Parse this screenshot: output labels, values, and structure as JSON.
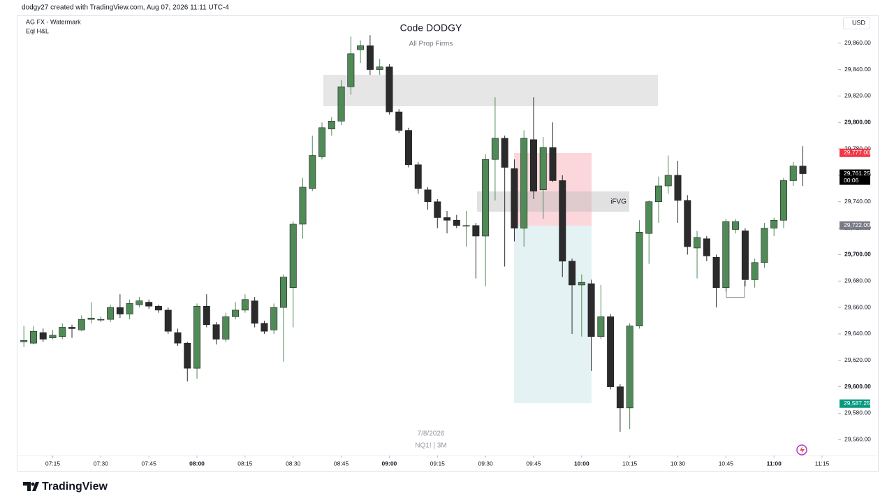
{
  "header": "dodgy27 created with TradingView.com, Aug 07, 2026 11:11 UTC-4",
  "indicators": [
    "AG FX - Watermark",
    "Eql H&L"
  ],
  "currency": "USD",
  "brand": "TradingView",
  "chart_data": {
    "type": "candlestick",
    "title": "Code DODGY",
    "subtitle": "All Prop Firms",
    "date_label": "7/8/2026",
    "symbol_label": "NQ1! | 3M",
    "annotation": "iFVG",
    "up_color": "#4f8a57",
    "down_color": "#2b2b2b",
    "x": [
      "07:06",
      "07:09",
      "07:12",
      "07:15",
      "07:18",
      "07:21",
      "07:24",
      "07:27",
      "07:30",
      "07:33",
      "07:36",
      "07:39",
      "07:42",
      "07:45",
      "07:48",
      "07:51",
      "07:54",
      "07:57",
      "08:00",
      "08:03",
      "08:06",
      "08:09",
      "08:12",
      "08:15",
      "08:18",
      "08:21",
      "08:24",
      "08:27",
      "08:30",
      "08:33",
      "08:36",
      "08:39",
      "08:42",
      "08:45",
      "08:48",
      "08:51",
      "08:54",
      "08:57",
      "09:00",
      "09:03",
      "09:06",
      "09:09",
      "09:12",
      "09:15",
      "09:18",
      "09:21",
      "09:24",
      "09:27",
      "09:30",
      "09:33",
      "09:36",
      "09:39",
      "09:42",
      "09:45",
      "09:48",
      "09:51",
      "09:54",
      "09:57",
      "10:00",
      "10:03",
      "10:06",
      "10:09",
      "10:12",
      "10:15",
      "10:18",
      "10:21",
      "10:24",
      "10:27",
      "10:30",
      "10:33",
      "10:36",
      "10:39",
      "10:42",
      "10:45",
      "10:48",
      "10:51",
      "10:54",
      "10:57",
      "11:00",
      "11:03",
      "11:06",
      "11:09"
    ],
    "open": [
      29634,
      29633,
      29641,
      29637,
      29638,
      29645,
      29643,
      29651,
      29651,
      29651,
      29660,
      29655,
      29662,
      29664,
      29661,
      29658,
      29641,
      29633,
      29614,
      29661,
      29647,
      29636,
      29653,
      29658,
      29665,
      29648,
      29643,
      29660,
      29675,
      29723,
      29750,
      29774,
      29795,
      29801,
      29827,
      29855,
      29858,
      29840,
      29842,
      29808,
      29794,
      29768,
      29749,
      29740,
      29728,
      29726,
      29722,
      29722,
      29714,
      29772,
      29788,
      29765,
      29720,
      29787,
      29749,
      29781,
      29756,
      29695,
      29677,
      29678,
      29638,
      29653,
      29600,
      29584,
      29646,
      29716,
      29740,
      29752,
      29760,
      29741,
      29705,
      29712,
      29698,
      29675,
      29719,
      29718,
      29681,
      29694,
      29720,
      29726,
      29756,
      29767
    ],
    "high": [
      29646,
      29646,
      29644,
      29643,
      29648,
      29647,
      29654,
      29664,
      29653,
      29662,
      29670,
      29666,
      29668,
      29666,
      29662,
      29660,
      29644,
      29634,
      29663,
      29670,
      29649,
      29656,
      29664,
      29670,
      29668,
      29650,
      29663,
      29685,
      29725,
      29758,
      29790,
      29800,
      29804,
      29832,
      29865,
      29862,
      29866,
      29848,
      29844,
      29810,
      29796,
      29770,
      29751,
      29742,
      29733,
      29730,
      29733,
      29724,
      29776,
      29819,
      29790,
      29772,
      29794,
      29819,
      29789,
      29800,
      29760,
      29697,
      29685,
      29681,
      29677,
      29655,
      29602,
      29648,
      29726,
      29741,
      29759,
      29775,
      29771,
      29745,
      29718,
      29714,
      29700,
      29727,
      29727,
      29720,
      29697,
      29724,
      29728,
      29758,
      29770,
      29782
    ],
    "low": [
      29630,
      29632,
      29634,
      29636,
      29636,
      29637,
      29642,
      29648,
      29649,
      29649,
      29652,
      29651,
      29660,
      29659,
      29656,
      29640,
      29631,
      29604,
      29606,
      29645,
      29632,
      29634,
      29651,
      29656,
      29645,
      29640,
      29640,
      29619,
      29645,
      29712,
      29748,
      29772,
      29790,
      29798,
      29821,
      29845,
      29836,
      29836,
      29806,
      29792,
      29766,
      29746,
      29734,
      29720,
      29716,
      29720,
      29706,
      29682,
      29676,
      29741,
      29691,
      29710,
      29706,
      29742,
      29727,
      29755,
      29683,
      29640,
      29638,
      29612,
      29636,
      29598,
      29566,
      29568,
      29644,
      29693,
      29724,
      29746,
      29724,
      29700,
      29682,
      29695,
      29660,
      29672,
      29716,
      29676,
      29675,
      29690,
      29714,
      29720,
      29752,
      29752
    ],
    "close": [
      29635,
      29642,
      29636,
      29639,
      29645,
      29644,
      29651,
      29652,
      29651,
      29660,
      29655,
      29663,
      29665,
      29661,
      29658,
      29642,
      29633,
      29614,
      29661,
      29647,
      29636,
      29653,
      29658,
      29666,
      29648,
      29642,
      29660,
      29683,
      29723,
      29751,
      29775,
      29796,
      29801,
      29827,
      29852,
      29858,
      29840,
      29842,
      29808,
      29794,
      29768,
      29750,
      29740,
      29728,
      29726,
      29722,
      29722,
      29714,
      29772,
      29788,
      29766,
      29720,
      29788,
      29748,
      29781,
      29756,
      29695,
      29677,
      29679,
      29638,
      29653,
      29600,
      29584,
      29646,
      29717,
      29740,
      29752,
      29760,
      29741,
      29706,
      29713,
      29699,
      29675,
      29725,
      29725,
      29681,
      29694,
      29720,
      29726,
      29756,
      29767,
      29761.25
    ],
    "xlim": [
      "07:04",
      "11:20"
    ],
    "xticks": [
      "07:15",
      "07:30",
      "07:45",
      "08:00",
      "08:15",
      "08:30",
      "08:45",
      "09:00",
      "09:15",
      "09:30",
      "09:45",
      "10:00",
      "10:15",
      "10:30",
      "10:45",
      "11:00",
      "11:15"
    ],
    "ylim": [
      29548,
      29881
    ],
    "yticks": [
      {
        "value": 29560,
        "label": "29,560.00"
      },
      {
        "value": 29580,
        "label": "29,580.00"
      },
      {
        "value": 29600,
        "label": "29,600.00"
      },
      {
        "value": 29620,
        "label": "29,620.00"
      },
      {
        "value": 29640,
        "label": "29,640.00"
      },
      {
        "value": 29660,
        "label": "29,660.00"
      },
      {
        "value": 29680,
        "label": "29,680.00"
      },
      {
        "value": 29700,
        "label": "29,700.00"
      },
      {
        "value": 29720,
        "label": "29,720.00"
      },
      {
        "value": 29740,
        "label": "29,740.00"
      },
      {
        "value": 29760,
        "label": "29,760.00"
      },
      {
        "value": 29780,
        "label": "29,780.00"
      },
      {
        "value": 29800,
        "label": "29,800.00"
      },
      {
        "value": 29820,
        "label": "29,820.00"
      },
      {
        "value": 29840,
        "label": "29,840.00"
      },
      {
        "value": 29860,
        "label": "29,860.00"
      }
    ],
    "price_labels": [
      {
        "value": 29777,
        "label": "29,777.00",
        "color": "#f23645"
      },
      {
        "value": 29761.25,
        "label": "29,761.25",
        "color": "#000000",
        "countdown": "00:06"
      },
      {
        "value": 29722,
        "label": "29,722.00",
        "color": "#787b86"
      },
      {
        "value": 29587.25,
        "label": "29,587.25",
        "color": "#089981"
      }
    ]
  }
}
